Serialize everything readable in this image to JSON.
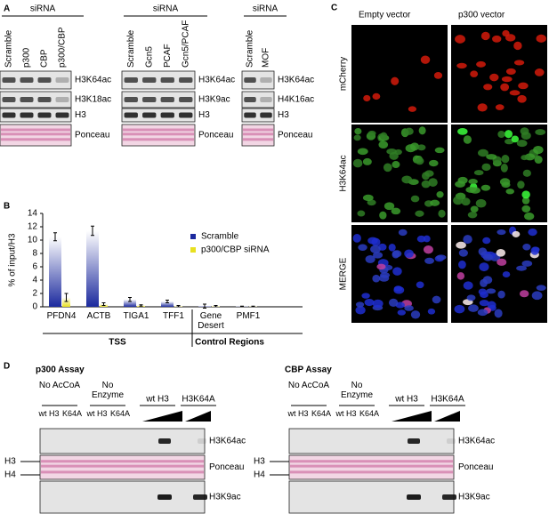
{
  "panels": {
    "labels": [
      "A",
      "B",
      "C",
      "D"
    ],
    "a": [
      {
        "header": "siRNA",
        "lanes": [
          "Scramble",
          "p300",
          "CBP",
          "p300/CBP"
        ],
        "rows": [
          "H3K64ac",
          "H3K18ac",
          "H3",
          "Ponceau"
        ]
      },
      {
        "header": "siRNA",
        "lanes": [
          "Scramble",
          "Gcn5",
          "PCAF",
          "Gcn5/PCAF"
        ],
        "rows": [
          "H3K64ac",
          "H3K9ac",
          "H3",
          "Ponceau"
        ]
      },
      {
        "header": "siRNA",
        "lanes": [
          "Scramble",
          "MOF"
        ],
        "rows": [
          "H3K64ac",
          "H4K16ac",
          "H3",
          "Ponceau"
        ]
      }
    ],
    "c": {
      "columns": [
        "Empty vector",
        "p300 vector"
      ],
      "rows": [
        "mCherry",
        "H3K64ac",
        "MERGE"
      ]
    },
    "d": [
      {
        "title": "p300 Assay",
        "conditions": [
          "No AcCoA",
          "No Enzyme",
          "wt H3",
          "H3K64A"
        ],
        "lanes": [
          "wt H3",
          "K64A",
          "wt H3",
          "K64A"
        ],
        "markers": [
          "H3",
          "H4"
        ],
        "rows": [
          "H3K64ac",
          "Ponceau",
          "H3K9ac"
        ]
      },
      {
        "title": "CBP Assay",
        "conditions": [
          "No AcCoA",
          "No Enzyme",
          "wt H3",
          "H3K64A"
        ],
        "lanes": [
          "wt H3",
          "K64A",
          "wt H3",
          "K64A"
        ],
        "markers": [
          "H3",
          "H4"
        ],
        "rows": [
          "H3K64ac",
          "Ponceau",
          "H3K9ac"
        ]
      }
    ]
  },
  "chart_data": {
    "type": "bar",
    "y_label": "% of input/H3",
    "categories": [
      "PFDN4",
      "ACTB",
      "TIGA1",
      "TFF1",
      "Gene Desert",
      "PMF1"
    ],
    "group_labels": [
      "TSS",
      "Control Regions"
    ],
    "series": [
      {
        "name": "Scramble",
        "color": "#1c2a9e",
        "values": [
          10.5,
          11.4,
          1.1,
          0.8,
          0.1,
          0.05
        ],
        "errors": [
          0.6,
          0.7,
          0.3,
          0.2,
          0.3,
          0.05
        ]
      },
      {
        "name": "p300/CBP siRNA",
        "color": "#e8e020",
        "values": [
          1.4,
          0.4,
          0.2,
          0.1,
          0.1,
          0.05
        ],
        "errors": [
          0.6,
          0.2,
          0.1,
          0.1,
          0.1,
          0.05
        ]
      }
    ],
    "ylim": [
      0,
      14
    ],
    "yticks": [
      0,
      2,
      4,
      6,
      8,
      10,
      12,
      14
    ]
  }
}
